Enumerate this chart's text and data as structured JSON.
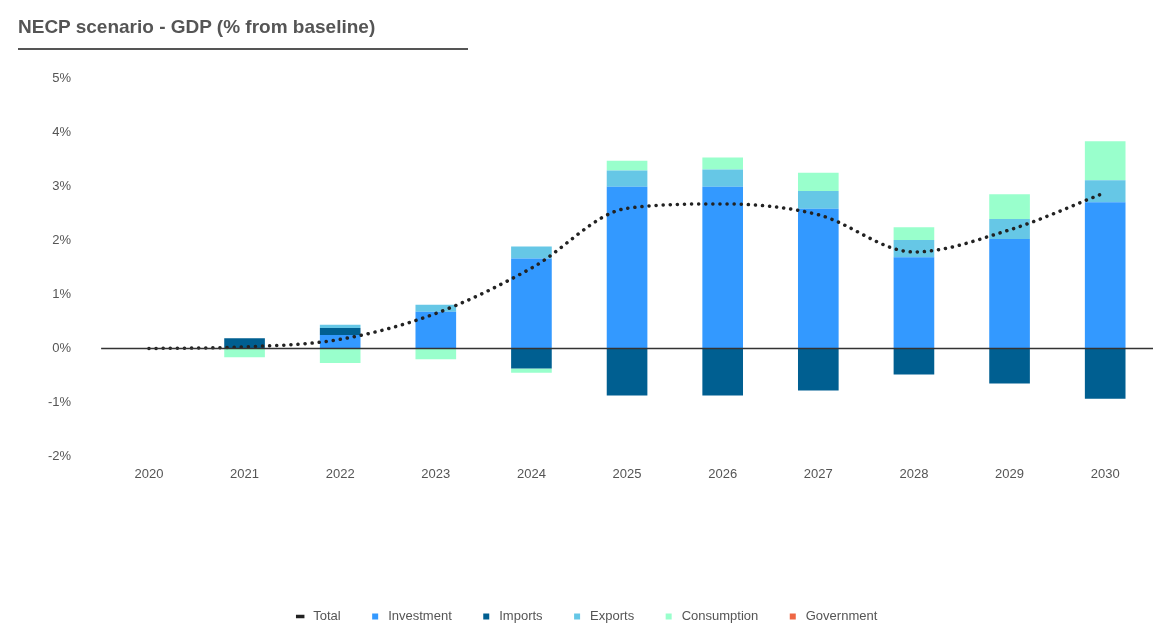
{
  "chart_data": {
    "type": "bar",
    "title": "NECP scenario - GDP (% from baseline)",
    "stacked": true,
    "categories": [
      "2020",
      "2021",
      "2022",
      "2023",
      "2024",
      "2025",
      "2026",
      "2027",
      "2028",
      "2029",
      "2030"
    ],
    "series": [
      {
        "name": "Investment",
        "color": "#3399ff",
        "values": [
          0,
          0,
          0.25,
          0.68,
          1.67,
          3.0,
          3.0,
          2.59,
          1.69,
          2.03,
          2.71
        ]
      },
      {
        "name": "Imports",
        "color": "#005f91",
        "values": [
          0,
          0.19,
          0.13,
          0,
          -0.37,
          -0.87,
          -0.87,
          -0.78,
          -0.48,
          -0.65,
          -0.93
        ]
      },
      {
        "name": "Exports",
        "color": "#66c7e6",
        "values": [
          0,
          0,
          0.06,
          0.13,
          0.22,
          0.3,
          0.32,
          0.33,
          0.32,
          0.37,
          0.41
        ]
      },
      {
        "name": "Consumption",
        "color": "#99ffcc",
        "values": [
          0,
          -0.16,
          -0.27,
          -0.2,
          -0.08,
          0.18,
          0.22,
          0.34,
          0.24,
          0.46,
          0.72
        ]
      },
      {
        "name": "Government",
        "color": "#ee6644",
        "values": [
          0,
          0,
          0,
          0,
          0,
          0,
          0,
          0,
          0,
          0,
          0
        ]
      },
      {
        "name": "Total",
        "type": "line",
        "color": "#222222",
        "line_style": "dotted",
        "marker": "none",
        "values": [
          0,
          0.03,
          0.17,
          0.65,
          1.49,
          2.6,
          2.68,
          2.48,
          1.79,
          2.2,
          2.89
        ]
      }
    ],
    "ylim": [
      -2,
      5
    ],
    "yticks": [
      {
        "value": -2,
        "label": "-2%"
      },
      {
        "value": -1,
        "label": "-1%"
      },
      {
        "value": 0,
        "label": "0%"
      },
      {
        "value": 1,
        "label": "1%"
      },
      {
        "value": 2,
        "label": "2%"
      },
      {
        "value": 3,
        "label": "3%"
      },
      {
        "value": 4,
        "label": "4%"
      },
      {
        "value": 5,
        "label": "5%"
      }
    ],
    "ref_lines": [
      {
        "axis": "y",
        "value": 0,
        "color": "#333333"
      }
    ],
    "grid": false,
    "legend": "bottom"
  }
}
